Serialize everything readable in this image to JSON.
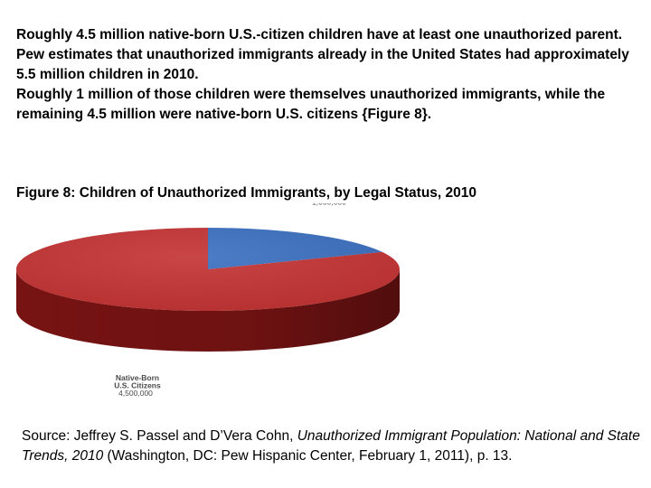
{
  "paragraph": [
    "Roughly 4.5 million native-born U.S.-citizen children have at least one unauthorized parent.",
    "Pew estimates that unauthorized immigrants already in the United States had approximately 5.5 million children in 2010.",
    "Roughly 1 million of those children were themselves unauthorized immigrants, while the remaining 4.5 million were native-born U.S. citizens {Figure 8}."
  ],
  "figure_title": "Figure 8: Children of Unauthorized Immigrants, by Legal Status, 2010",
  "chart_data": {
    "type": "pie",
    "title": "Figure 8: Children of Unauthorized Immigrants, by Legal Status, 2010",
    "slices": [
      {
        "label": "Unauthorized",
        "value": 1000000,
        "value_label": "1,000,000",
        "color": "#3a6fc0",
        "side_color": "#24467a"
      },
      {
        "label": "Native-Born U.S. Citizens",
        "label_lines": [
          "Native-Born",
          "U.S. Citizens"
        ],
        "value": 4500000,
        "value_label": "4,500,000",
        "color": "#c43232",
        "side_color": "#7d1414"
      }
    ],
    "style": "3d"
  },
  "source": {
    "prefix": "Source: Jeffrey S. Passel and D’Vera Cohn, ",
    "title": "Unauthorized Immigrant Population: National and State Trends, 2010",
    "suffix": " (Washington, DC: Pew Hispanic Center, February 1, 2011), p. 13."
  }
}
